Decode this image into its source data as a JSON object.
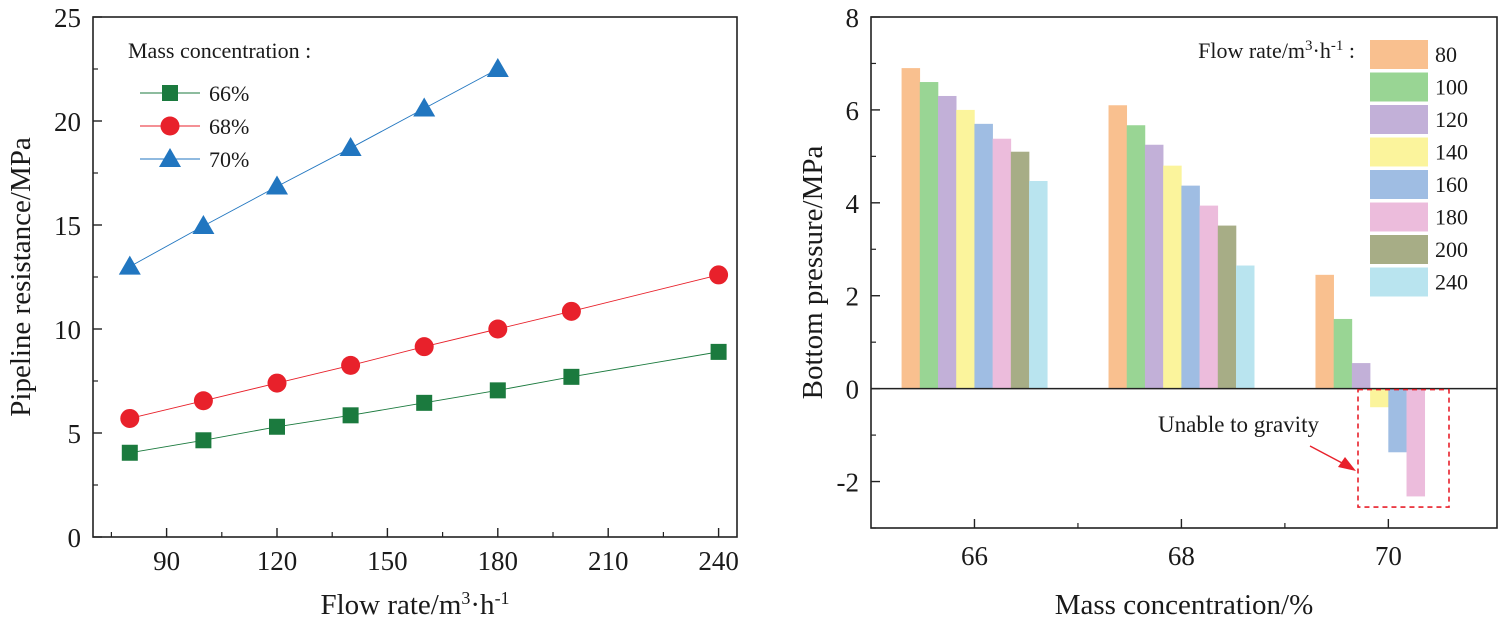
{
  "chart_data": [
    {
      "type": "line",
      "xlabel": "Flow rate/m³·h⁻¹",
      "xlabel_parts": {
        "base": "Flow rate/m",
        "sup1": "3",
        "mid": "·h",
        "sup2": "-1"
      },
      "ylabel": "Pipeline resistance/MPa",
      "xlim": [
        70,
        245
      ],
      "ylim": [
        0,
        25
      ],
      "xticks": [
        90,
        120,
        150,
        180,
        210,
        240
      ],
      "yticks": [
        0,
        5,
        10,
        15,
        20,
        25
      ],
      "legend_title": "Mass concentration :",
      "legend_position": "top-left",
      "series": [
        {
          "name": "66%",
          "marker": "square",
          "color": "#1b7a3e",
          "x": [
            80,
            100,
            120,
            140,
            160,
            180,
            200,
            240
          ],
          "y": [
            4.05,
            4.65,
            5.3,
            5.85,
            6.45,
            7.05,
            7.7,
            8.9
          ]
        },
        {
          "name": "68%",
          "marker": "circle",
          "color": "#e8212b",
          "x": [
            80,
            100,
            120,
            140,
            160,
            180,
            200,
            240
          ],
          "y": [
            5.7,
            6.55,
            7.4,
            8.25,
            9.15,
            10.0,
            10.85,
            12.6
          ]
        },
        {
          "name": "70%",
          "marker": "triangle",
          "color": "#2176c0",
          "x": [
            80,
            100,
            120,
            140,
            160,
            180
          ],
          "y": [
            13.0,
            14.95,
            16.85,
            18.7,
            20.6,
            22.5
          ]
        }
      ]
    },
    {
      "type": "bar",
      "xlabel": "Mass concentration/%",
      "ylabel": "Bottom pressure/MPa",
      "categories": [
        "66",
        "68",
        "70"
      ],
      "category_values": [
        66,
        68,
        70
      ],
      "xlim": [
        65.0,
        71.05
      ],
      "ylim": [
        -3,
        8
      ],
      "yticks": [
        8,
        6,
        4,
        2,
        0,
        -2
      ],
      "ytick_labels": [
        "8",
        "6",
        "4",
        "2",
        "0",
        "-2"
      ],
      "legend_title": "Flow rate/m³·h⁻¹ :",
      "legend_title_parts": {
        "base": "Flow rate/m",
        "sup1": "3",
        "mid": "·h",
        "sup2": "-1",
        "tail": " :"
      },
      "legend_position": "top-right",
      "series": [
        {
          "name": "80",
          "color": "#f9c08f",
          "values": [
            6.9,
            6.1,
            2.45
          ]
        },
        {
          "name": "100",
          "color": "#99d594",
          "values": [
            6.6,
            5.67,
            1.5
          ]
        },
        {
          "name": "120",
          "color": "#c2b0d8",
          "values": [
            6.3,
            5.25,
            0.55
          ]
        },
        {
          "name": "140",
          "color": "#fbf49c",
          "values": [
            6.0,
            4.8,
            -0.4
          ]
        },
        {
          "name": "160",
          "color": "#9fbde3",
          "values": [
            5.7,
            4.37,
            -1.37
          ]
        },
        {
          "name": "180",
          "color": "#ecbcdc",
          "values": [
            5.38,
            3.94,
            -2.32
          ]
        },
        {
          "name": "200",
          "color": "#a7ad86",
          "values": [
            5.1,
            3.51,
            null
          ]
        },
        {
          "name": "240",
          "color": "#b9e4ef",
          "values": [
            4.47,
            2.65,
            null
          ]
        }
      ],
      "annotation": {
        "text": "Unable to gravity",
        "color": "#e8212b"
      }
    }
  ]
}
